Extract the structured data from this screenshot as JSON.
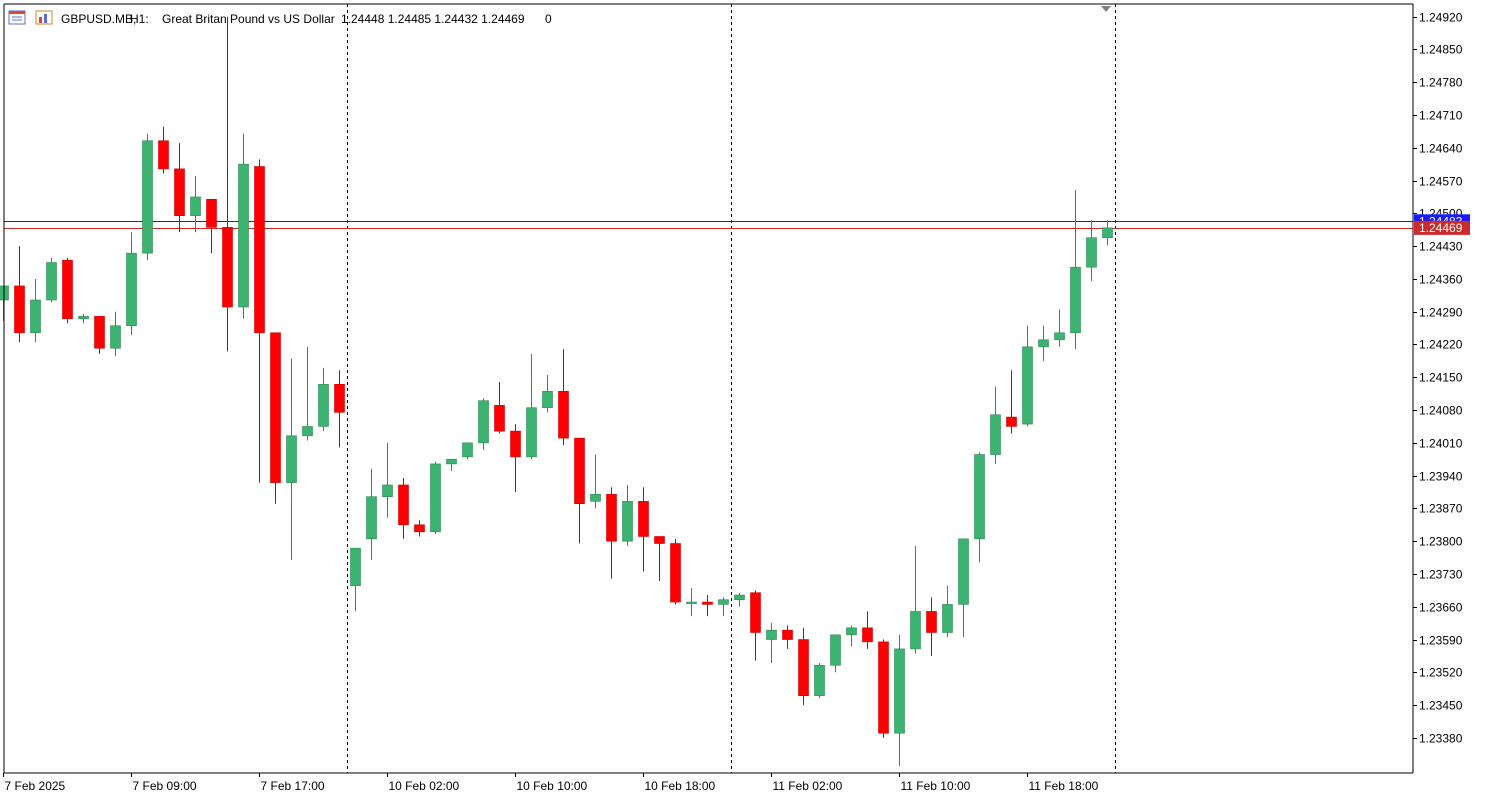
{
  "header": {
    "symbol": "GBPUSD.MB,",
    "timeframe": "H1:",
    "description": "Great Britan Pound vs US Dollar",
    "ohlc": "1.24448 1.24485 1.24432 1.24469",
    "volume": "0"
  },
  "colors": {
    "bull": "#3cb371",
    "bear": "#ff0000",
    "wick_bull": "#2e8b57",
    "wick_bear": "#cc0000",
    "bid_line": "#1a1aff",
    "ask_line": "#cc2b2b",
    "axis": "#000000",
    "separator": "#000000"
  },
  "chart_data": {
    "type": "candlestick",
    "price_axis": {
      "ticks": [
        "1.24920",
        "1.24850",
        "1.24780",
        "1.24710",
        "1.24640",
        "1.24570",
        "1.24500",
        "1.24430",
        "1.24360",
        "1.24290",
        "1.24220",
        "1.24150",
        "1.24080",
        "1.24010",
        "1.23940",
        "1.23870",
        "1.23800",
        "1.23730",
        "1.23660",
        "1.23590",
        "1.23520",
        "1.23450",
        "1.23380"
      ],
      "ylim": [
        1.23305,
        1.24947
      ]
    },
    "time_axis": {
      "labels": [
        "7 Feb 2025",
        "7 Feb 09:00",
        "7 Feb 17:00",
        "10 Feb 02:00",
        "10 Feb 10:00",
        "10 Feb 18:00",
        "11 Feb 02:00",
        "11 Feb 10:00",
        "11 Feb 18:00"
      ],
      "label_index": [
        0,
        8,
        16,
        24,
        32,
        40,
        48,
        56,
        64
      ]
    },
    "day_separators_after_index": [
      21.5,
      45.5,
      69.5
    ],
    "current_price": {
      "bid": 1.24469,
      "bid_label": "1.24469",
      "ask": 1.24483,
      "ask_label": "1.24483"
    },
    "candles": [
      {
        "o": 1.24315,
        "h": 1.24345,
        "l": 1.2427,
        "c": 1.24345
      },
      {
        "o": 1.24345,
        "h": 1.2443,
        "l": 1.24225,
        "c": 1.24245
      },
      {
        "o": 1.24245,
        "h": 1.2436,
        "l": 1.24225,
        "c": 1.24315
      },
      {
        "o": 1.24315,
        "h": 1.24405,
        "l": 1.2431,
        "c": 1.24395
      },
      {
        "o": 1.244,
        "h": 1.24405,
        "l": 1.24265,
        "c": 1.24275
      },
      {
        "o": 1.24275,
        "h": 1.24285,
        "l": 1.24265,
        "c": 1.2428
      },
      {
        "o": 1.2428,
        "h": 1.2428,
        "l": 1.242,
        "c": 1.24212
      },
      {
        "o": 1.24212,
        "h": 1.2429,
        "l": 1.24195,
        "c": 1.2426
      },
      {
        "o": 1.2426,
        "h": 1.2446,
        "l": 1.2424,
        "c": 1.24415
      },
      {
        "o": 1.24415,
        "h": 1.2467,
        "l": 1.244,
        "c": 1.24655
      },
      {
        "o": 1.24655,
        "h": 1.24685,
        "l": 1.24585,
        "c": 1.24595
      },
      {
        "o": 1.24595,
        "h": 1.2465,
        "l": 1.2446,
        "c": 1.24495
      },
      {
        "o": 1.24495,
        "h": 1.2458,
        "l": 1.2446,
        "c": 1.24535
      },
      {
        "o": 1.2453,
        "h": 1.2453,
        "l": 1.24415,
        "c": 1.2447
      },
      {
        "o": 1.2447,
        "h": 1.2492,
        "l": 1.24205,
        "c": 1.243
      },
      {
        "o": 1.243,
        "h": 1.2467,
        "l": 1.24275,
        "c": 1.24605
      },
      {
        "o": 1.246,
        "h": 1.24615,
        "l": 1.23925,
        "c": 1.24245
      },
      {
        "o": 1.24245,
        "h": 1.24245,
        "l": 1.2388,
        "c": 1.23925
      },
      {
        "o": 1.23925,
        "h": 1.2419,
        "l": 1.2376,
        "c": 1.24025
      },
      {
        "o": 1.24025,
        "h": 1.24215,
        "l": 1.24015,
        "c": 1.24045
      },
      {
        "o": 1.24045,
        "h": 1.2417,
        "l": 1.24035,
        "c": 1.24135
      },
      {
        "o": 1.24135,
        "h": 1.24165,
        "l": 1.24,
        "c": 1.24075
      },
      {
        "o": 1.23705,
        "h": 1.23785,
        "l": 1.2365,
        "c": 1.23785
      },
      {
        "o": 1.23805,
        "h": 1.23955,
        "l": 1.2376,
        "c": 1.23895
      },
      {
        "o": 1.23895,
        "h": 1.2401,
        "l": 1.2385,
        "c": 1.2392
      },
      {
        "o": 1.2392,
        "h": 1.23935,
        "l": 1.23805,
        "c": 1.23835
      },
      {
        "o": 1.23835,
        "h": 1.23845,
        "l": 1.2381,
        "c": 1.2382
      },
      {
        "o": 1.2382,
        "h": 1.2397,
        "l": 1.23815,
        "c": 1.23965
      },
      {
        "o": 1.23965,
        "h": 1.23975,
        "l": 1.2395,
        "c": 1.23975
      },
      {
        "o": 1.2398,
        "h": 1.2401,
        "l": 1.23975,
        "c": 1.2401
      },
      {
        "o": 1.2401,
        "h": 1.24105,
        "l": 1.23995,
        "c": 1.241
      },
      {
        "o": 1.2409,
        "h": 1.2414,
        "l": 1.2403,
        "c": 1.24035
      },
      {
        "o": 1.24035,
        "h": 1.2405,
        "l": 1.23905,
        "c": 1.2398
      },
      {
        "o": 1.2398,
        "h": 1.242,
        "l": 1.23975,
        "c": 1.24085
      },
      {
        "o": 1.24085,
        "h": 1.24155,
        "l": 1.24075,
        "c": 1.2412
      },
      {
        "o": 1.2412,
        "h": 1.2421,
        "l": 1.24005,
        "c": 1.2402
      },
      {
        "o": 1.2402,
        "h": 1.2402,
        "l": 1.23795,
        "c": 1.2388
      },
      {
        "o": 1.23885,
        "h": 1.23985,
        "l": 1.2387,
        "c": 1.239
      },
      {
        "o": 1.239,
        "h": 1.23915,
        "l": 1.2372,
        "c": 1.238
      },
      {
        "o": 1.238,
        "h": 1.2392,
        "l": 1.2379,
        "c": 1.23885
      },
      {
        "o": 1.23885,
        "h": 1.23915,
        "l": 1.23735,
        "c": 1.2381
      },
      {
        "o": 1.2381,
        "h": 1.2381,
        "l": 1.23715,
        "c": 1.23795
      },
      {
        "o": 1.23795,
        "h": 1.23805,
        "l": 1.23665,
        "c": 1.2367
      },
      {
        "o": 1.2367,
        "h": 1.237,
        "l": 1.2364,
        "c": 1.2367
      },
      {
        "o": 1.2367,
        "h": 1.23685,
        "l": 1.2364,
        "c": 1.23665
      },
      {
        "o": 1.23665,
        "h": 1.2368,
        "l": 1.2364,
        "c": 1.23675
      },
      {
        "o": 1.23675,
        "h": 1.2369,
        "l": 1.2366,
        "c": 1.23685
      },
      {
        "o": 1.2369,
        "h": 1.23695,
        "l": 1.23545,
        "c": 1.23605
      },
      {
        "o": 1.2359,
        "h": 1.23625,
        "l": 1.2354,
        "c": 1.2361
      },
      {
        "o": 1.2361,
        "h": 1.2362,
        "l": 1.2357,
        "c": 1.2359
      },
      {
        "o": 1.2359,
        "h": 1.23615,
        "l": 1.2345,
        "c": 1.2347
      },
      {
        "o": 1.2347,
        "h": 1.2354,
        "l": 1.23465,
        "c": 1.23535
      },
      {
        "o": 1.23535,
        "h": 1.236,
        "l": 1.2352,
        "c": 1.236
      },
      {
        "o": 1.236,
        "h": 1.2362,
        "l": 1.23575,
        "c": 1.23615
      },
      {
        "o": 1.23615,
        "h": 1.2365,
        "l": 1.2357,
        "c": 1.23585
      },
      {
        "o": 1.23585,
        "h": 1.2359,
        "l": 1.2338,
        "c": 1.2339
      },
      {
        "o": 1.2339,
        "h": 1.236,
        "l": 1.2332,
        "c": 1.2357
      },
      {
        "o": 1.2357,
        "h": 1.2379,
        "l": 1.2356,
        "c": 1.2365
      },
      {
        "o": 1.2365,
        "h": 1.2368,
        "l": 1.23555,
        "c": 1.23605
      },
      {
        "o": 1.23605,
        "h": 1.23705,
        "l": 1.23595,
        "c": 1.23665
      },
      {
        "o": 1.23665,
        "h": 1.23805,
        "l": 1.23595,
        "c": 1.23805
      },
      {
        "o": 1.23805,
        "h": 1.2399,
        "l": 1.23755,
        "c": 1.23985
      },
      {
        "o": 1.23985,
        "h": 1.2413,
        "l": 1.23965,
        "c": 1.2407
      },
      {
        "o": 1.24065,
        "h": 1.24165,
        "l": 1.2403,
        "c": 1.24045
      },
      {
        "o": 1.2405,
        "h": 1.2426,
        "l": 1.24045,
        "c": 1.24215
      },
      {
        "o": 1.24215,
        "h": 1.2426,
        "l": 1.24185,
        "c": 1.2423
      },
      {
        "o": 1.2423,
        "h": 1.24295,
        "l": 1.24215,
        "c": 1.24245
      },
      {
        "o": 1.24245,
        "h": 1.2455,
        "l": 1.2421,
        "c": 1.24385
      },
      {
        "o": 1.24385,
        "h": 1.24485,
        "l": 1.24355,
        "c": 1.24448
      },
      {
        "o": 1.24448,
        "h": 1.24485,
        "l": 1.24432,
        "c": 1.24469
      }
    ]
  }
}
